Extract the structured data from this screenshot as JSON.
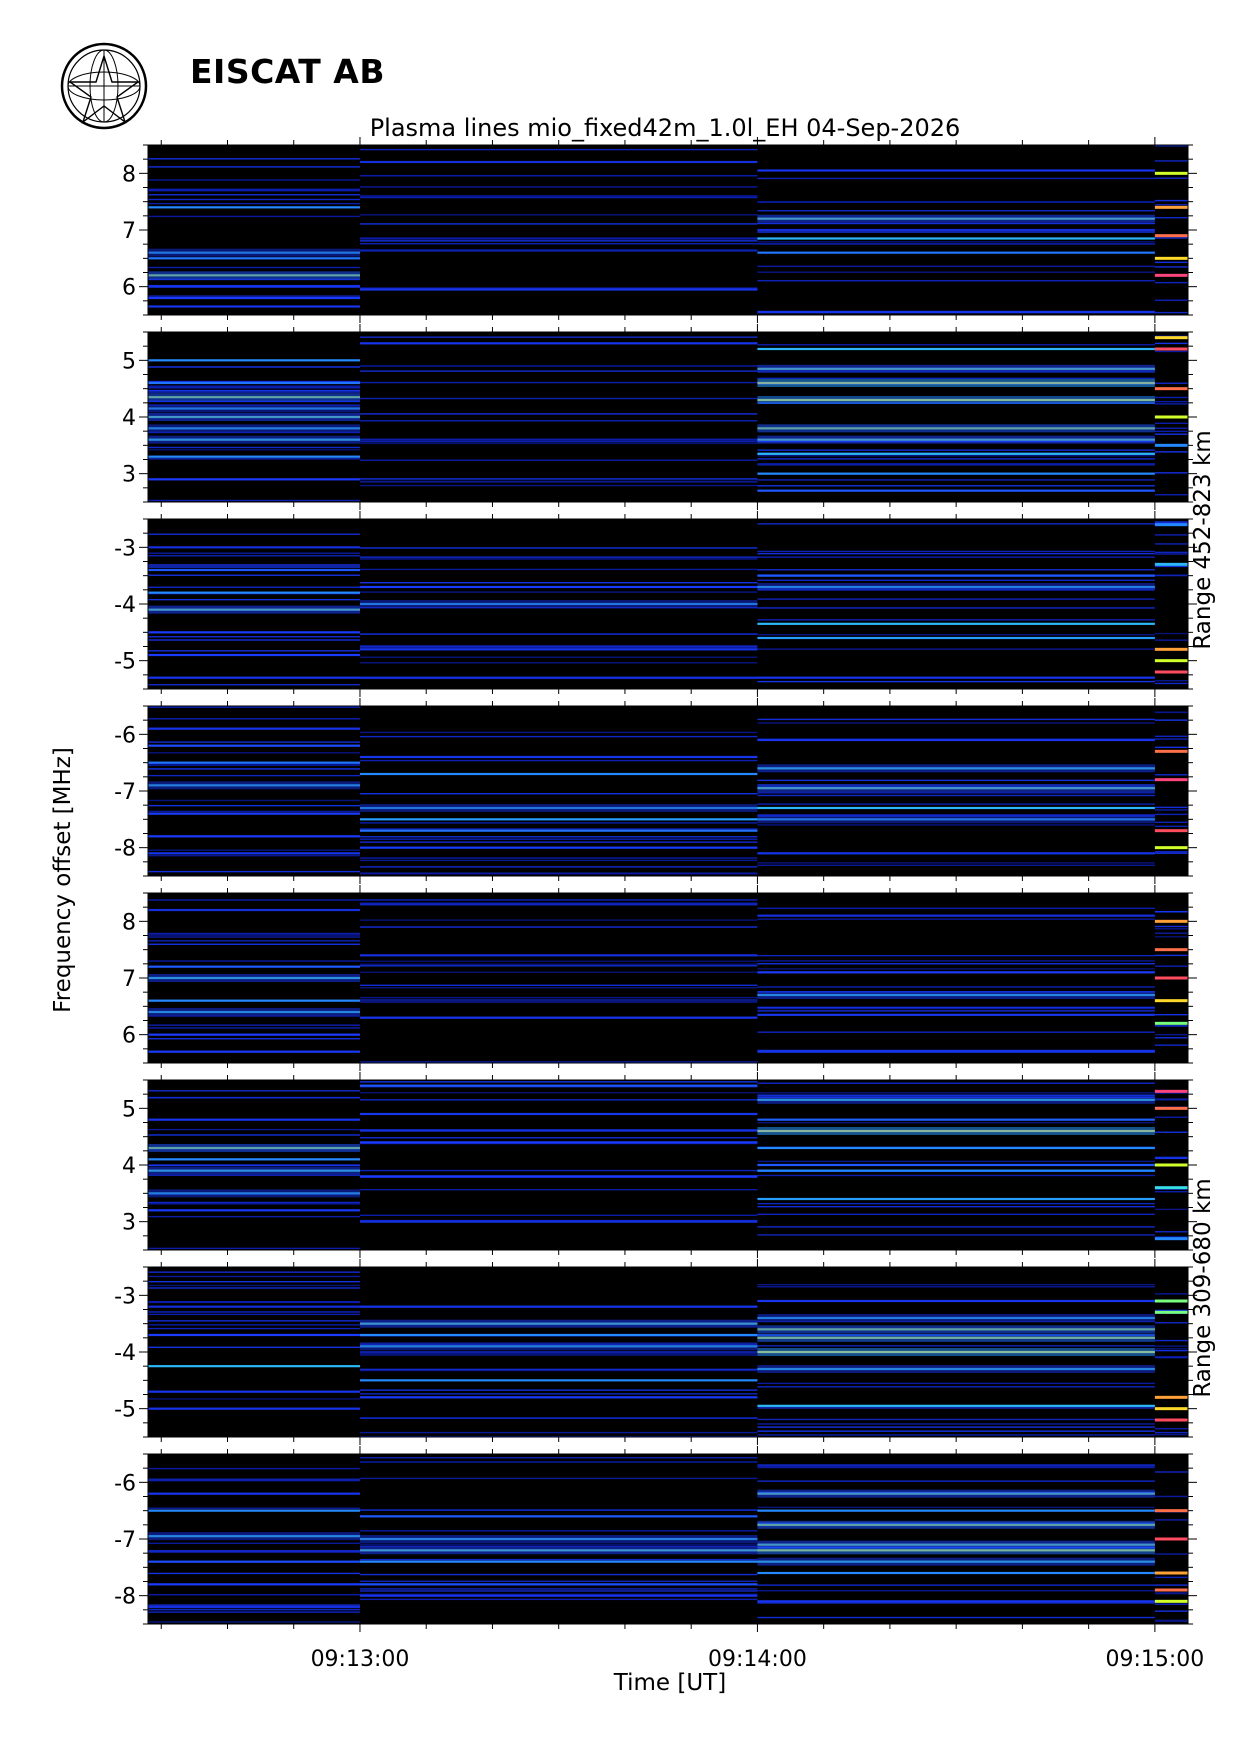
{
  "header": {
    "organization": "EISCAT AB",
    "title": "Plasma lines   mio_fixed42m_1.0l_EH  04-Sep-2026"
  },
  "chart_data": {
    "type": "heatmap",
    "title": "Plasma lines   mio_fixed42m_1.0l_EH  04-Sep-2026",
    "xlabel": "Time [UT]",
    "ylabel": "Frequency offset [MHz]",
    "x_ticks": [
      "09:13:00",
      "09:14:00",
      "09:15:00"
    ],
    "x_tick_seconds": [
      60,
      120,
      180
    ],
    "xlim_seconds": [
      28,
      185
    ],
    "segment_boundaries_seconds": [
      28,
      60,
      120,
      180,
      185
    ],
    "colormap": [
      "#000000",
      "#0a1aa0",
      "#1a3cff",
      "#28aaff",
      "#40ffd0",
      "#b0ff30",
      "#ffff20",
      "#ff8040",
      "#ff3070",
      "#ffffff"
    ],
    "range_groups": [
      {
        "label": "Range 452-823 km",
        "panels": [
          0,
          1,
          2,
          3
        ]
      },
      {
        "label": "Range 309-680 km",
        "panels": [
          4,
          5,
          6,
          7
        ]
      }
    ],
    "panels": [
      {
        "ylim": [
          5.5,
          8.5
        ],
        "yticks": [
          6,
          7,
          8
        ],
        "lines": [
          [
            [
              6.2,
              0.55
            ],
            [
              6.6,
              0.38
            ],
            [
              6.5,
              0.28
            ],
            [
              7.4,
              0.3
            ],
            [
              5.8,
              0.22
            ],
            [
              6.0,
              0.2
            ],
            [
              5.65,
              0.2
            ]
          ],
          [
            [
              5.95,
              0.2
            ],
            [
              8.2,
              0.18
            ],
            [
              6.85,
              0.12
            ]
          ],
          [
            [
              7.2,
              0.5
            ],
            [
              6.85,
              0.35
            ],
            [
              6.6,
              0.28
            ],
            [
              8.05,
              0.2
            ],
            [
              5.55,
              0.2
            ],
            [
              7.0,
              0.18
            ]
          ],
          [
            [
              6.2,
              0.9
            ],
            [
              6.9,
              0.8
            ],
            [
              7.4,
              0.75
            ],
            [
              8.0,
              0.6
            ],
            [
              6.5,
              0.7
            ]
          ]
        ]
      },
      {
        "ylim": [
          2.5,
          5.5
        ],
        "yticks": [
          3,
          4,
          5
        ],
        "lines": [
          [
            [
              4.35,
              0.55
            ],
            [
              4.0,
              0.5
            ],
            [
              3.6,
              0.45
            ],
            [
              3.8,
              0.4
            ],
            [
              4.15,
              0.38
            ],
            [
              5.0,
              0.3
            ],
            [
              3.3,
              0.3
            ],
            [
              2.9,
              0.22
            ],
            [
              4.6,
              0.28
            ]
          ],
          [
            [
              5.3,
              0.2
            ],
            [
              3.6,
              0.12
            ]
          ],
          [
            [
              4.6,
              0.72
            ],
            [
              4.3,
              0.65
            ],
            [
              3.8,
              0.55
            ],
            [
              3.6,
              0.5
            ],
            [
              4.85,
              0.5
            ],
            [
              5.2,
              0.35
            ],
            [
              3.35,
              0.35
            ],
            [
              3.0,
              0.3
            ],
            [
              2.7,
              0.25
            ]
          ],
          [
            [
              5.2,
              0.85
            ],
            [
              4.5,
              0.8
            ],
            [
              4.0,
              0.6
            ],
            [
              3.5,
              0.3
            ],
            [
              5.4,
              0.7
            ]
          ]
        ]
      },
      {
        "ylim": [
          -5.5,
          -2.5
        ],
        "yticks": [
          -3,
          -4,
          -5
        ],
        "lines": [
          [
            [
              -4.1,
              0.5
            ],
            [
              -3.8,
              0.3
            ],
            [
              -3.4,
              0.25
            ],
            [
              -4.5,
              0.22
            ],
            [
              -4.9,
              0.22
            ],
            [
              -5.3,
              0.2
            ],
            [
              -3.0,
              0.18
            ]
          ],
          [
            [
              -4.0,
              0.38
            ],
            [
              -3.7,
              0.22
            ],
            [
              -4.8,
              0.2
            ],
            [
              -5.3,
              0.18
            ]
          ],
          [
            [
              -3.7,
              0.4
            ],
            [
              -4.35,
              0.35
            ],
            [
              -4.6,
              0.32
            ],
            [
              -3.5,
              0.25
            ],
            [
              -5.3,
              0.2
            ]
          ],
          [
            [
              -2.6,
              0.3
            ],
            [
              -3.3,
              0.35
            ],
            [
              -4.8,
              0.75
            ],
            [
              -5.2,
              0.85
            ],
            [
              -5.0,
              0.6
            ]
          ]
        ]
      },
      {
        "ylim": [
          -8.5,
          -5.5
        ],
        "yticks": [
          -6,
          -7,
          -8
        ],
        "lines": [
          [
            [
              -6.9,
              0.4
            ],
            [
              -6.5,
              0.28
            ],
            [
              -6.2,
              0.24
            ],
            [
              -7.4,
              0.22
            ],
            [
              -7.8,
              0.22
            ],
            [
              -8.1,
              0.2
            ],
            [
              -5.9,
              0.2
            ]
          ],
          [
            [
              -7.3,
              0.38
            ],
            [
              -7.5,
              0.32
            ],
            [
              -6.7,
              0.3
            ],
            [
              -7.7,
              0.28
            ],
            [
              -8.0,
              0.22
            ],
            [
              -6.4,
              0.2
            ]
          ],
          [
            [
              -6.6,
              0.45
            ],
            [
              -6.95,
              0.5
            ],
            [
              -7.3,
              0.35
            ],
            [
              -7.5,
              0.38
            ],
            [
              -8.1,
              0.2
            ],
            [
              -6.1,
              0.2
            ]
          ],
          [
            [
              -6.3,
              0.8
            ],
            [
              -6.8,
              0.9
            ],
            [
              -7.7,
              0.85
            ],
            [
              -8.0,
              0.6
            ]
          ]
        ]
      },
      {
        "ylim": [
          5.5,
          8.5
        ],
        "yticks": [
          6,
          7,
          8
        ],
        "lines": [
          [
            [
              6.4,
              0.42
            ],
            [
              7.0,
              0.45
            ],
            [
              6.6,
              0.3
            ],
            [
              7.2,
              0.25
            ],
            [
              5.7,
              0.22
            ],
            [
              6.0,
              0.22
            ],
            [
              8.2,
              0.18
            ]
          ],
          [
            [
              6.3,
              0.2
            ],
            [
              7.4,
              0.18
            ],
            [
              8.3,
              0.15
            ]
          ],
          [
            [
              6.7,
              0.42
            ],
            [
              7.1,
              0.22
            ],
            [
              6.35,
              0.2
            ],
            [
              5.7,
              0.2
            ],
            [
              8.1,
              0.18
            ]
          ],
          [
            [
              8.0,
              0.75
            ],
            [
              7.5,
              0.8
            ],
            [
              7.0,
              0.85
            ],
            [
              6.6,
              0.7
            ],
            [
              6.2,
              0.5
            ]
          ]
        ]
      },
      {
        "ylim": [
          2.5,
          5.5
        ],
        "yticks": [
          3,
          4,
          5
        ],
        "lines": [
          [
            [
              4.3,
              0.55
            ],
            [
              3.9,
              0.45
            ],
            [
              3.5,
              0.4
            ],
            [
              4.1,
              0.3
            ],
            [
              3.2,
              0.22
            ],
            [
              4.8,
              0.2
            ]
          ],
          [
            [
              5.4,
              0.25
            ],
            [
              4.4,
              0.22
            ],
            [
              3.8,
              0.22
            ],
            [
              3.0,
              0.18
            ],
            [
              4.9,
              0.2
            ]
          ],
          [
            [
              4.6,
              0.7
            ],
            [
              5.15,
              0.45
            ],
            [
              4.3,
              0.3
            ],
            [
              3.9,
              0.3
            ],
            [
              3.4,
              0.32
            ],
            [
              4.0,
              0.25
            ],
            [
              4.8,
              0.26
            ]
          ],
          [
            [
              5.3,
              0.9
            ],
            [
              5.0,
              0.8
            ],
            [
              4.0,
              0.6
            ],
            [
              3.6,
              0.4
            ],
            [
              2.7,
              0.3
            ]
          ]
        ]
      },
      {
        "ylim": [
          -5.5,
          -2.5
        ],
        "yticks": [
          -3,
          -4,
          -5
        ],
        "lines": [
          [
            [
              -4.25,
              0.35
            ],
            [
              -3.7,
              0.22
            ],
            [
              -4.7,
              0.2
            ],
            [
              -5.0,
              0.2
            ],
            [
              -3.2,
              0.18
            ]
          ],
          [
            [
              -3.5,
              0.48
            ],
            [
              -3.9,
              0.4
            ],
            [
              -3.7,
              0.3
            ],
            [
              -4.5,
              0.3
            ],
            [
              -4.8,
              0.22
            ],
            [
              -3.2,
              0.2
            ]
          ],
          [
            [
              -3.75,
              0.6
            ],
            [
              -3.6,
              0.55
            ],
            [
              -4.0,
              0.68
            ],
            [
              -3.4,
              0.4
            ],
            [
              -4.3,
              0.42
            ],
            [
              -4.95,
              0.35
            ],
            [
              -3.1,
              0.2
            ]
          ],
          [
            [
              -3.1,
              0.5
            ],
            [
              -3.3,
              0.5
            ],
            [
              -4.8,
              0.75
            ],
            [
              -5.2,
              0.85
            ],
            [
              -5.0,
              0.7
            ]
          ]
        ]
      },
      {
        "ylim": [
          -8.5,
          -5.5
        ],
        "yticks": [
          -6,
          -7,
          -8
        ],
        "lines": [
          [
            [
              -6.95,
              0.42
            ],
            [
              -6.5,
              0.3
            ],
            [
              -7.4,
              0.24
            ],
            [
              -7.8,
              0.22
            ],
            [
              -6.2,
              0.2
            ],
            [
              -8.2,
              0.18
            ]
          ],
          [
            [
              -7.2,
              0.48
            ],
            [
              -7.0,
              0.4
            ],
            [
              -7.4,
              0.3
            ],
            [
              -6.6,
              0.25
            ],
            [
              -7.8,
              0.24
            ],
            [
              -8.0,
              0.2
            ]
          ],
          [
            [
              -6.2,
              0.5
            ],
            [
              -6.75,
              0.55
            ],
            [
              -7.2,
              0.62
            ],
            [
              -7.1,
              0.5
            ],
            [
              -7.4,
              0.45
            ],
            [
              -7.6,
              0.3
            ],
            [
              -6.5,
              0.3
            ],
            [
              -8.1,
              0.2
            ]
          ],
          [
            [
              -6.5,
              0.8
            ],
            [
              -7.0,
              0.85
            ],
            [
              -7.6,
              0.75
            ],
            [
              -7.9,
              0.8
            ],
            [
              -8.1,
              0.6
            ]
          ]
        ]
      }
    ]
  }
}
